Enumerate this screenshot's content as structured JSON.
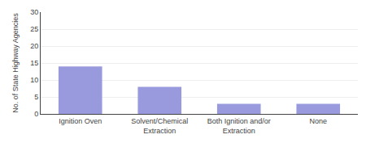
{
  "chart_data": {
    "type": "bar",
    "categories": [
      "Ignition Oven",
      "Solvent/Chemical\nExtraction",
      "Both Ignition and/or\nExtraction",
      "None"
    ],
    "values": [
      14,
      8,
      3,
      3
    ],
    "color": "#9999dd",
    "ylabel": "No. of State Highway Agencies",
    "ylim": [
      0,
      30
    ],
    "yticks": [
      0,
      5,
      10,
      15,
      20,
      25,
      30
    ],
    "grid": true
  }
}
